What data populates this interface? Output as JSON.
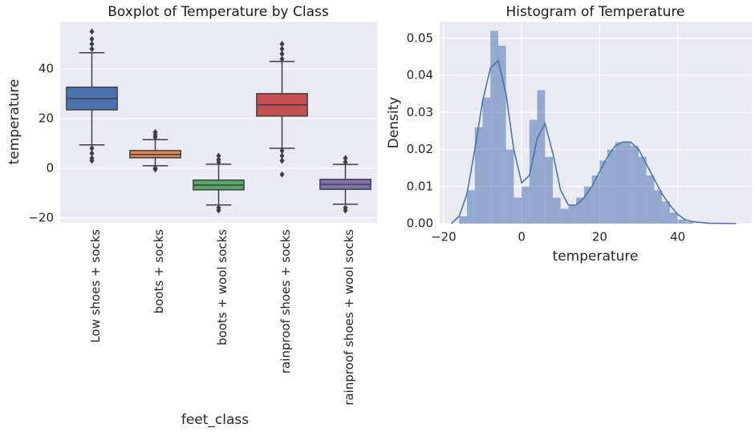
{
  "chart_data": [
    {
      "type": "box",
      "title": "Boxplot of Temperature by Class",
      "xlabel": "feet_class",
      "ylabel": "temperature",
      "categories": [
        "Low shoes + socks",
        "boots + socks",
        "boots + wool socks",
        "rainproof shoes + socks",
        "rainproof shoes + wool socks"
      ],
      "boxes": [
        {
          "color": "#4c72b0",
          "whislo": 9.4,
          "q1": 23.5,
          "median": 28,
          "q3": 32.6,
          "whishi": 46.5,
          "fliers": [
            48,
            50,
            52,
            55,
            8,
            6,
            4,
            3
          ]
        },
        {
          "color": "#dd8452",
          "whislo": 1,
          "q1": 4.2,
          "median": 5.5,
          "q3": 7.1,
          "whishi": 11.5,
          "fliers": [
            12.5,
            13.5,
            14.5,
            0,
            -0.5
          ]
        },
        {
          "color": "#55a868",
          "whislo": -14.8,
          "q1": -8.7,
          "median": -6.8,
          "q3": -4.8,
          "whishi": 1.6,
          "fliers": [
            2.5,
            3.5,
            5,
            -16,
            -17
          ]
        },
        {
          "color": "#c44e52",
          "whislo": 8,
          "q1": 21,
          "median": 25.5,
          "q3": 30,
          "whishi": 43,
          "fliers": [
            44,
            46,
            48,
            50,
            7,
            5,
            3,
            -2.5
          ]
        },
        {
          "color": "#8172b3",
          "whislo": -14.5,
          "q1": -8.5,
          "median": -6.5,
          "q3": -4.5,
          "whishi": 1.5,
          "fliers": [
            2.5,
            4,
            -16,
            -17
          ]
        }
      ],
      "ylim": [
        -22,
        59
      ],
      "yticks": [
        {
          "value": -20,
          "label": "−20"
        },
        0,
        20,
        40
      ],
      "grid": true
    },
    {
      "type": "histogram",
      "title": "Histogram of Temperature",
      "xlabel": "temperature",
      "ylabel": "Density",
      "bins": [
        -16,
        -14,
        -12,
        -10,
        -8,
        -6,
        -4,
        -2,
        0,
        2,
        4,
        6,
        8,
        10,
        12,
        14,
        16,
        18,
        20,
        22,
        24,
        26,
        28,
        30,
        32,
        34,
        36,
        38,
        40,
        42,
        44
      ],
      "values": [
        0.002,
        0.009,
        0.026,
        0.034,
        0.052,
        0.048,
        0.02,
        0.007,
        0.01,
        0.028,
        0.036,
        0.018,
        0.007,
        0.004,
        0.005,
        0.007,
        0.01,
        0.013,
        0.017,
        0.02,
        0.022,
        0.022,
        0.021,
        0.018,
        0.013,
        0.009,
        0.006,
        0.003,
        0.001,
        0.0005
      ],
      "color": "#4c72b0",
      "kde": {
        "x": [
          -18,
          -16,
          -14,
          -12,
          -10,
          -8,
          -6,
          -4,
          -2,
          0,
          2,
          4,
          6,
          8,
          10,
          12,
          14,
          16,
          18,
          20,
          22,
          24,
          26,
          28,
          30,
          32,
          34,
          36,
          38,
          40,
          42,
          44,
          48,
          55
        ],
        "values": [
          0,
          0.002,
          0.008,
          0.02,
          0.033,
          0.042,
          0.044,
          0.035,
          0.02,
          0.011,
          0.013,
          0.023,
          0.027,
          0.019,
          0.009,
          0.005,
          0.005,
          0.007,
          0.01,
          0.014,
          0.018,
          0.021,
          0.022,
          0.022,
          0.02,
          0.016,
          0.012,
          0.008,
          0.005,
          0.0025,
          0.001,
          0.0005,
          0.0001,
          0
        ],
        "color": "#4c72b0"
      },
      "xlim": [
        -21,
        59
      ],
      "xticks": [
        {
          "value": -20,
          "label": "−20"
        },
        0,
        20,
        40
      ],
      "ylim": [
        0,
        0.0545
      ],
      "yticks": [
        {
          "value": 0,
          "label": "0.00"
        },
        {
          "value": 0.01,
          "label": "0.01"
        },
        {
          "value": 0.02,
          "label": "0.02"
        },
        {
          "value": 0.03,
          "label": "0.03"
        },
        {
          "value": 0.04,
          "label": "0.04"
        },
        {
          "value": 0.05,
          "label": "0.05"
        }
      ],
      "grid": true
    }
  ]
}
